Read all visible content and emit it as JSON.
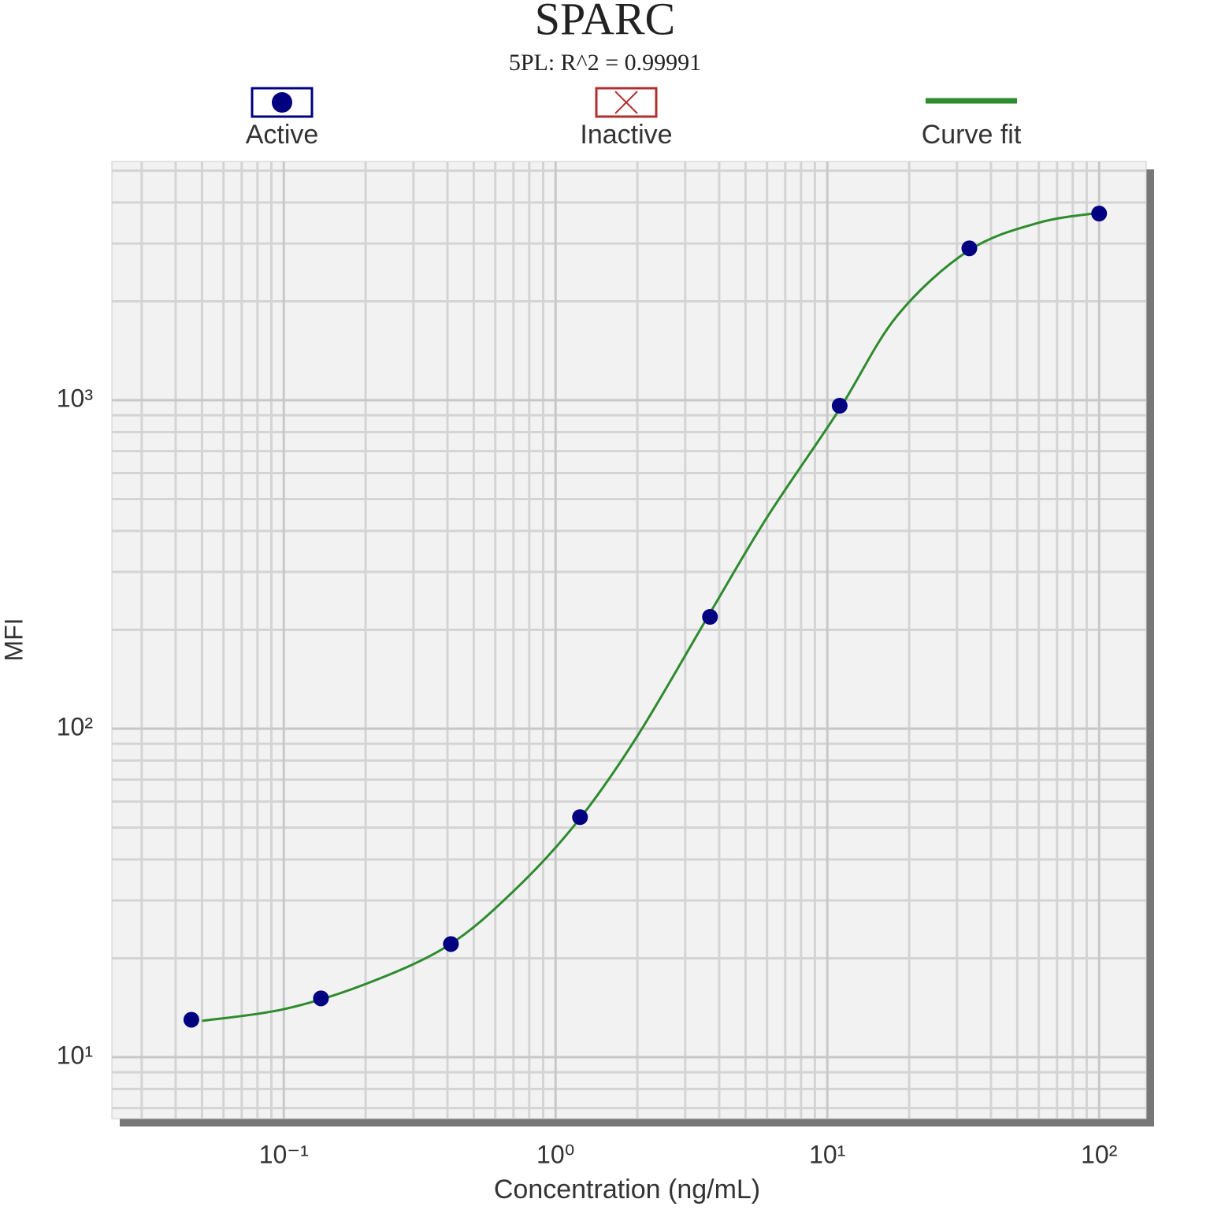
{
  "chart_data": {
    "type": "scatter",
    "title": "SPARC",
    "subtitle": "5PL: R^2 = 0.99991",
    "x_label": "Concentration (ng/mL)",
    "y_label": "MFI",
    "xscale": "log",
    "yscale": "log",
    "grid": true,
    "legend": "top",
    "xlim": [
      0.0233,
      149
    ],
    "ylim": [
      6.5,
      5330
    ],
    "xticks": [
      {
        "value": 0.1,
        "label": "10⁻¹"
      },
      {
        "value": 1,
        "label": "10⁰"
      },
      {
        "value": 10,
        "label": "10¹"
      },
      {
        "value": 100,
        "label": "10²"
      }
    ],
    "yticks": [
      {
        "value": 10,
        "label": "10¹"
      },
      {
        "value": 100,
        "label": "10²"
      },
      {
        "value": 1000,
        "label": "10³"
      }
    ],
    "xminor": [
      0.03,
      0.04,
      0.05,
      0.06,
      0.07,
      0.08,
      0.09,
      0.2,
      0.3,
      0.4,
      0.5,
      0.6,
      0.7,
      0.8,
      0.9,
      2,
      3,
      4,
      5,
      6,
      7,
      8,
      9,
      20,
      30,
      40,
      50,
      60,
      70,
      80,
      90
    ],
    "yminor": [
      7,
      8,
      9,
      20,
      30,
      40,
      50,
      60,
      70,
      80,
      90,
      200,
      300,
      400,
      500,
      600,
      700,
      800,
      900,
      2000,
      3000,
      4000,
      5000
    ],
    "series": [
      {
        "name": "Active",
        "kind": "scatter",
        "color": "#000080",
        "x": [
          0.0457,
          0.137,
          0.412,
          1.23,
          3.7,
          11.1,
          33.3,
          100
        ],
        "values": [
          13.0,
          15.1,
          22.1,
          53.8,
          219,
          962,
          2900,
          3700
        ]
      },
      {
        "name": "Inactive",
        "kind": "scatter",
        "color": "#b03030",
        "x": [],
        "values": []
      },
      {
        "name": "Curve fit",
        "kind": "line",
        "color": "#2e8b2e",
        "x": [
          0.05,
          0.1,
          0.2,
          0.4,
          0.7,
          1.2,
          2,
          3.7,
          6,
          11,
          18,
          33,
          60,
          100
        ],
        "values": [
          12.9,
          14.0,
          16.7,
          21.8,
          32,
          52,
          95,
          225,
          440,
          930,
          1800,
          2850,
          3470,
          3720
        ]
      }
    ]
  }
}
